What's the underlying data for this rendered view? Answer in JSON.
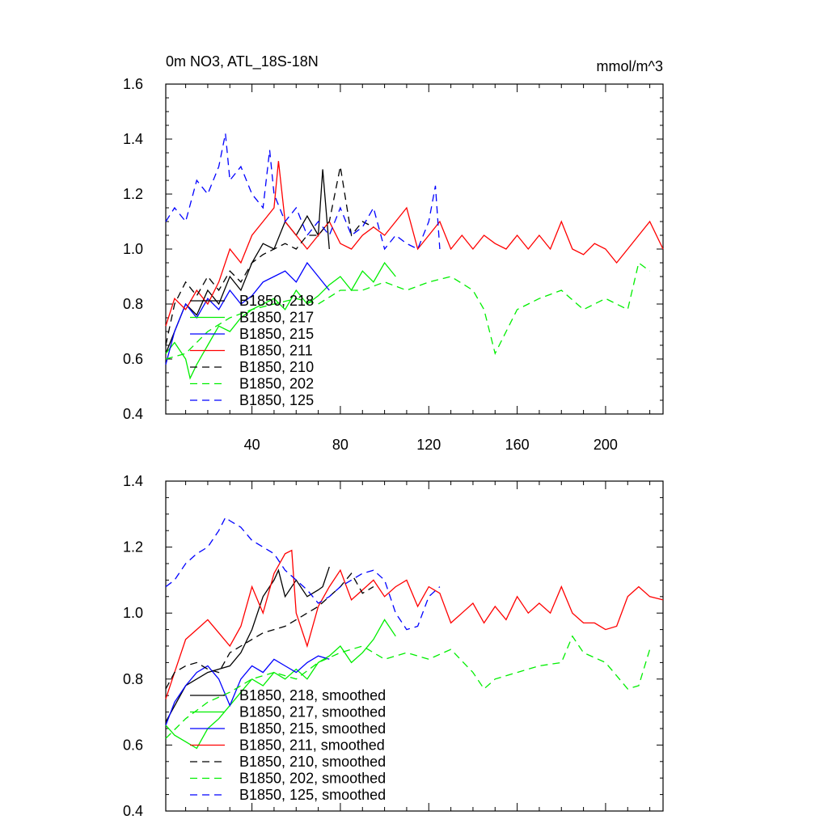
{
  "figure": {
    "title_left": "0m NO3, ATL_18S-18N",
    "title_right": "mmol/m^3"
  },
  "chart_data": [
    {
      "type": "line",
      "title": "0m NO3, ATL_18S-18N",
      "units": "mmol/m^3",
      "xlim": [
        1,
        226
      ],
      "ylim": [
        0.4,
        1.6
      ],
      "x_ticks": [
        40,
        80,
        120,
        160,
        200
      ],
      "y_ticks": [
        0.4,
        0.6,
        0.8,
        1.0,
        1.2,
        1.4,
        1.6
      ],
      "y_tick_labels": [
        "0.4",
        "0.6",
        "0.8",
        "1.0",
        "1.2",
        "1.4",
        "1.6"
      ],
      "grid": false,
      "legend_position": "lower-left",
      "series": [
        {
          "name": "B1850, 218",
          "color": "#000000",
          "dash": "solid",
          "x": [
            1,
            5,
            10,
            15,
            20,
            25,
            30,
            35,
            40,
            45,
            50,
            55,
            60,
            65,
            70,
            72,
            75
          ],
          "values": [
            0.62,
            0.7,
            0.8,
            0.76,
            0.85,
            0.8,
            0.9,
            0.85,
            0.95,
            1.02,
            1.0,
            1.1,
            1.05,
            1.12,
            1.05,
            1.29,
            1.0
          ]
        },
        {
          "name": "B1850, 217",
          "color": "#00ee00",
          "dash": "solid",
          "x": [
            1,
            5,
            10,
            12,
            15,
            20,
            25,
            30,
            35,
            40,
            45,
            50,
            55,
            60,
            65,
            70,
            75,
            80,
            85,
            90,
            95,
            100,
            105
          ],
          "values": [
            0.62,
            0.66,
            0.6,
            0.53,
            0.58,
            0.65,
            0.72,
            0.7,
            0.75,
            0.78,
            0.8,
            0.82,
            0.78,
            0.85,
            0.8,
            0.83,
            0.87,
            0.9,
            0.85,
            0.92,
            0.88,
            0.95,
            0.9
          ]
        },
        {
          "name": "B1850, 215",
          "color": "#0000ff",
          "dash": "solid",
          "x": [
            1,
            5,
            10,
            15,
            20,
            25,
            30,
            35,
            40,
            45,
            50,
            55,
            60,
            65,
            70,
            75
          ],
          "values": [
            0.58,
            0.7,
            0.8,
            0.75,
            0.82,
            0.78,
            0.85,
            0.8,
            0.83,
            0.88,
            0.9,
            0.92,
            0.88,
            0.95,
            0.9,
            0.85
          ]
        },
        {
          "name": "B1850, 211",
          "color": "#ff0000",
          "dash": "solid",
          "x": [
            1,
            5,
            10,
            15,
            20,
            25,
            30,
            35,
            40,
            45,
            50,
            52,
            55,
            60,
            65,
            70,
            75,
            80,
            85,
            90,
            95,
            100,
            105,
            110,
            115,
            120,
            125,
            130,
            135,
            140,
            145,
            150,
            155,
            160,
            165,
            170,
            175,
            180,
            185,
            190,
            195,
            200,
            205,
            210,
            215,
            220,
            226
          ],
          "values": [
            0.72,
            0.82,
            0.78,
            0.85,
            0.8,
            0.88,
            1.0,
            0.95,
            1.05,
            1.1,
            1.15,
            1.32,
            1.1,
            1.05,
            1.0,
            1.05,
            1.1,
            1.02,
            1.0,
            1.05,
            1.08,
            1.05,
            1.1,
            1.15,
            1.0,
            1.05,
            1.1,
            1.0,
            1.05,
            1.0,
            1.05,
            1.02,
            1.0,
            1.05,
            1.0,
            1.05,
            1.0,
            1.1,
            1.0,
            0.98,
            1.02,
            1.0,
            0.95,
            1.0,
            1.05,
            1.1,
            1.0
          ]
        },
        {
          "name": "B1850, 210",
          "color": "#000000",
          "dash": "dashed",
          "x": [
            1,
            5,
            10,
            15,
            20,
            25,
            30,
            35,
            40,
            45,
            50,
            55,
            60,
            65,
            70,
            75,
            80,
            85,
            90,
            95
          ],
          "values": [
            0.65,
            0.8,
            0.88,
            0.83,
            0.9,
            0.85,
            0.92,
            0.88,
            0.95,
            0.98,
            1.0,
            1.02,
            1.0,
            1.05,
            1.05,
            1.1,
            1.3,
            1.05,
            1.1,
            1.08
          ]
        },
        {
          "name": "B1850, 202",
          "color": "#00ee00",
          "dash": "dashed",
          "x": [
            1,
            10,
            20,
            30,
            40,
            50,
            60,
            70,
            80,
            90,
            100,
            110,
            120,
            130,
            140,
            145,
            150,
            160,
            170,
            180,
            190,
            200,
            210,
            215,
            220
          ],
          "values": [
            0.6,
            0.62,
            0.7,
            0.75,
            0.78,
            0.8,
            0.82,
            0.8,
            0.85,
            0.85,
            0.88,
            0.85,
            0.88,
            0.9,
            0.85,
            0.78,
            0.62,
            0.78,
            0.82,
            0.85,
            0.78,
            0.82,
            0.78,
            0.95,
            0.92
          ]
        },
        {
          "name": "B1850, 125",
          "color": "#0000ff",
          "dash": "dashed",
          "x": [
            1,
            5,
            10,
            15,
            20,
            25,
            28,
            30,
            35,
            40,
            45,
            48,
            50,
            55,
            60,
            65,
            70,
            75,
            80,
            85,
            90,
            95,
            100,
            105,
            110,
            115,
            120,
            123,
            125
          ],
          "values": [
            1.1,
            1.15,
            1.1,
            1.25,
            1.2,
            1.3,
            1.42,
            1.25,
            1.3,
            1.2,
            1.15,
            1.36,
            1.2,
            1.1,
            1.15,
            1.05,
            1.1,
            1.05,
            1.15,
            1.05,
            1.08,
            1.15,
            1.0,
            1.05,
            1.02,
            1.0,
            1.1,
            1.23,
            1.0
          ]
        }
      ]
    },
    {
      "type": "line",
      "xlim": [
        1,
        226
      ],
      "ylim": [
        0.4,
        1.4
      ],
      "y_ticks": [
        0.4,
        0.6,
        0.8,
        1.0,
        1.2,
        1.4
      ],
      "y_tick_labels": [
        "0.4",
        "0.6",
        "0.8",
        "1.0",
        "1.2",
        "1.4"
      ],
      "x_ticks": [
        40,
        80,
        120,
        160,
        200
      ],
      "grid": false,
      "legend_position": "lower-left",
      "series": [
        {
          "name": "B1850, 218, smoothed",
          "color": "#000000",
          "dash": "solid",
          "x": [
            1,
            10,
            20,
            30,
            35,
            40,
            45,
            50,
            52,
            55,
            60,
            65,
            70,
            72,
            75
          ],
          "values": [
            0.67,
            0.78,
            0.82,
            0.84,
            0.88,
            0.95,
            1.05,
            1.1,
            1.13,
            1.05,
            1.1,
            1.05,
            1.07,
            1.08,
            1.14
          ]
        },
        {
          "name": "B1850, 217, smoothed",
          "color": "#00ee00",
          "dash": "solid",
          "x": [
            1,
            5,
            10,
            15,
            20,
            25,
            30,
            35,
            40,
            45,
            50,
            55,
            60,
            65,
            70,
            75,
            80,
            85,
            90,
            95,
            100,
            105
          ],
          "values": [
            0.66,
            0.63,
            0.61,
            0.59,
            0.65,
            0.68,
            0.72,
            0.76,
            0.8,
            0.78,
            0.82,
            0.8,
            0.83,
            0.8,
            0.85,
            0.87,
            0.9,
            0.85,
            0.88,
            0.92,
            0.98,
            0.93
          ]
        },
        {
          "name": "B1850, 215, smoothed",
          "color": "#0000ff",
          "dash": "solid",
          "x": [
            1,
            5,
            10,
            15,
            20,
            25,
            30,
            35,
            40,
            45,
            50,
            55,
            60,
            65,
            70,
            75
          ],
          "values": [
            0.66,
            0.73,
            0.78,
            0.82,
            0.84,
            0.8,
            0.72,
            0.8,
            0.84,
            0.82,
            0.86,
            0.84,
            0.82,
            0.85,
            0.87,
            0.86
          ]
        },
        {
          "name": "B1850, 211, smoothed",
          "color": "#ff0000",
          "dash": "solid",
          "x": [
            1,
            5,
            10,
            15,
            20,
            25,
            30,
            35,
            40,
            45,
            50,
            55,
            58,
            60,
            65,
            70,
            75,
            80,
            85,
            90,
            95,
            100,
            105,
            110,
            115,
            120,
            125,
            130,
            135,
            140,
            145,
            150,
            155,
            160,
            165,
            170,
            175,
            180,
            185,
            190,
            195,
            200,
            205,
            210,
            215,
            220,
            226
          ],
          "values": [
            0.74,
            0.82,
            0.92,
            0.95,
            0.98,
            0.94,
            0.9,
            0.96,
            1.08,
            1.0,
            1.12,
            1.18,
            1.19,
            1.0,
            0.9,
            1.02,
            1.08,
            1.13,
            1.04,
            1.07,
            1.1,
            1.05,
            1.08,
            1.1,
            1.02,
            1.08,
            1.06,
            0.97,
            1.0,
            1.03,
            0.97,
            1.02,
            0.98,
            1.05,
            1.0,
            1.03,
            1.0,
            1.08,
            1.0,
            0.97,
            0.97,
            0.95,
            0.96,
            1.05,
            1.08,
            1.05,
            1.04
          ]
        },
        {
          "name": "B1850, 210, smoothed",
          "color": "#000000",
          "dash": "dashed",
          "x": [
            1,
            5,
            10,
            15,
            20,
            25,
            30,
            35,
            40,
            45,
            50,
            55,
            60,
            65,
            70,
            75,
            80,
            85,
            90,
            95
          ],
          "values": [
            0.77,
            0.82,
            0.84,
            0.85,
            0.83,
            0.82,
            0.88,
            0.9,
            0.92,
            0.94,
            0.95,
            0.96,
            0.98,
            1.0,
            1.02,
            1.05,
            1.08,
            1.12,
            1.06,
            1.08
          ]
        },
        {
          "name": "B1850, 202, smoothed",
          "color": "#00ee00",
          "dash": "dashed",
          "x": [
            1,
            10,
            20,
            30,
            40,
            50,
            60,
            70,
            80,
            90,
            100,
            110,
            120,
            130,
            140,
            145,
            150,
            160,
            170,
            180,
            185,
            190,
            200,
            210,
            215,
            220
          ],
          "values": [
            0.62,
            0.68,
            0.73,
            0.76,
            0.8,
            0.82,
            0.8,
            0.85,
            0.88,
            0.9,
            0.86,
            0.88,
            0.86,
            0.89,
            0.82,
            0.77,
            0.8,
            0.82,
            0.84,
            0.85,
            0.93,
            0.88,
            0.85,
            0.77,
            0.78,
            0.89
          ]
        },
        {
          "name": "B1850, 125, smoothed",
          "color": "#0000ff",
          "dash": "dashed",
          "x": [
            1,
            5,
            10,
            15,
            20,
            25,
            28,
            30,
            35,
            40,
            45,
            50,
            55,
            60,
            65,
            70,
            75,
            80,
            85,
            90,
            95,
            100,
            105,
            110,
            115,
            120,
            125
          ],
          "values": [
            1.08,
            1.1,
            1.15,
            1.18,
            1.2,
            1.25,
            1.29,
            1.28,
            1.26,
            1.22,
            1.2,
            1.18,
            1.13,
            1.1,
            1.07,
            1.03,
            1.05,
            1.08,
            1.1,
            1.12,
            1.13,
            1.1,
            1.0,
            0.95,
            0.96,
            1.05,
            1.08
          ]
        }
      ]
    }
  ]
}
